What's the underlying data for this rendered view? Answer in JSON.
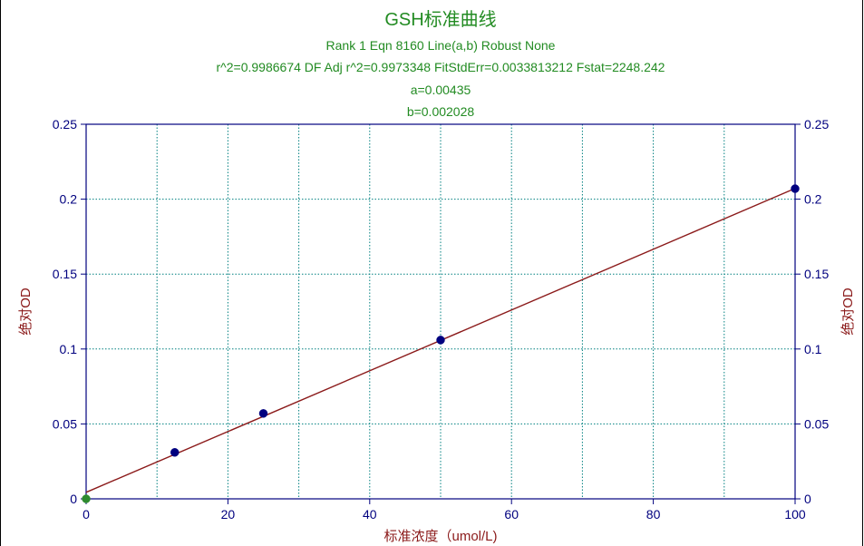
{
  "chart_data": {
    "type": "scatter",
    "title": "GSH标准曲线",
    "subtitle_lines": [
      "Rank 1  Eqn 8160  Line(a,b) Robust None",
      "r^2=0.9986674  DF Adj r^2=0.9973348  FitStdErr=0.0033813212  Fstat=2248.242",
      "a=0.00435",
      "b=0.002028"
    ],
    "xlabel": "标准浓度（umol/L)",
    "ylabel": "绝对OD",
    "ylabel_right": "绝对OD",
    "xlim": [
      0,
      100
    ],
    "ylim": [
      0,
      0.25
    ],
    "x_ticks": [
      0,
      20,
      40,
      60,
      80,
      100
    ],
    "x_tick_labels": [
      "0",
      "20",
      "40",
      "60",
      "80",
      "100"
    ],
    "x_minor_grid": [
      10,
      30,
      50,
      70,
      90
    ],
    "y_ticks": [
      0,
      0.05,
      0.1,
      0.15,
      0.2,
      0.25
    ],
    "y_tick_labels": [
      "0",
      "0.05",
      "0.1",
      "0.15",
      "0.2",
      "0.25"
    ],
    "grid": true,
    "series": [
      {
        "x": [
          0,
          12.5,
          25,
          50,
          100
        ],
        "y": [
          0,
          0.031,
          0.057,
          0.106,
          0.207
        ]
      }
    ],
    "fit_line": {
      "a": 0.00435,
      "b": 0.002028,
      "x_range": [
        0,
        100
      ]
    },
    "colors": {
      "title": "#228B22",
      "axis": "#00007F",
      "ticklabel": "#00007F",
      "axislabel": "#8B1A1A",
      "grid": "#008080",
      "fit": "#8B1A1A",
      "point": "#00007F",
      "point_origin": "#2E8B2E"
    }
  }
}
